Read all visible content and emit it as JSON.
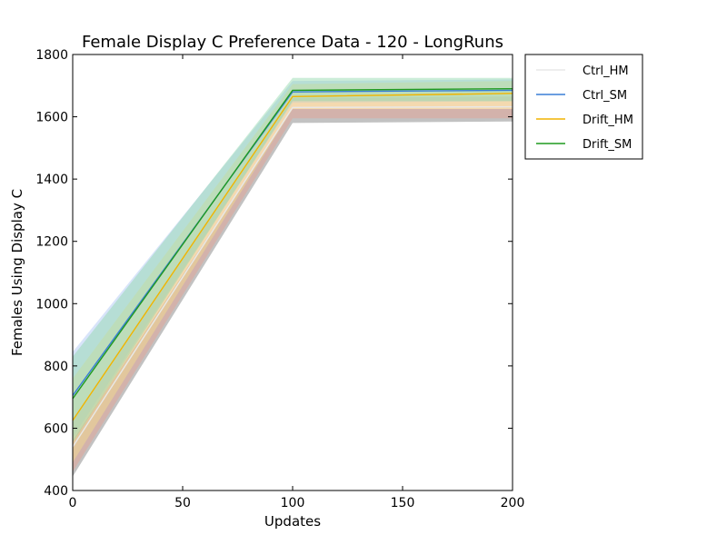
{
  "chart_data": {
    "type": "line",
    "title": "Female Display C Preference Data - 120 - LongRuns",
    "xlabel": "Updates",
    "ylabel": "Females Using Display C",
    "xlim": [
      0,
      200
    ],
    "ylim": [
      400,
      1800
    ],
    "xticks": [
      0,
      50,
      100,
      150,
      200
    ],
    "yticks": [
      400,
      600,
      800,
      1000,
      1200,
      1400,
      1600,
      1800
    ],
    "grid": false,
    "legend_placement": "outside-top-right",
    "x": [
      0,
      100,
      200
    ],
    "series": [
      {
        "name": "Ctrl_HM",
        "color": "#e8e8e8",
        "band_color": "#e8a090",
        "values": [
          540,
          1630,
          1632
        ],
        "lower": [
          460,
          1595,
          1595
        ],
        "upper": [
          620,
          1660,
          1665
        ]
      },
      {
        "name": "Ctrl_SM",
        "color": "#3a7fd5",
        "band_color": "#a8c4f4",
        "values": [
          705,
          1680,
          1685
        ],
        "lower": [
          570,
          1645,
          1650
        ],
        "upper": [
          845,
          1715,
          1720
        ]
      },
      {
        "name": "Drift_HM",
        "color": "#f0b400",
        "band_color": "#f5e08c",
        "values": [
          625,
          1665,
          1675
        ],
        "lower": [
          490,
          1625,
          1625
        ],
        "upper": [
          760,
          1705,
          1715
        ]
      },
      {
        "name": "Drift_SM",
        "color": "#1f9a1f",
        "band_color": "#8fd8a8",
        "values": [
          695,
          1685,
          1690
        ],
        "lower": [
          555,
          1650,
          1650
        ],
        "upper": [
          830,
          1725,
          1725
        ]
      }
    ],
    "lower_envelope": {
      "color": "#bbbbbb",
      "values_lower": [
        445,
        1580,
        1585
      ],
      "values_upper": [
        560,
        1625,
        1625
      ]
    }
  }
}
